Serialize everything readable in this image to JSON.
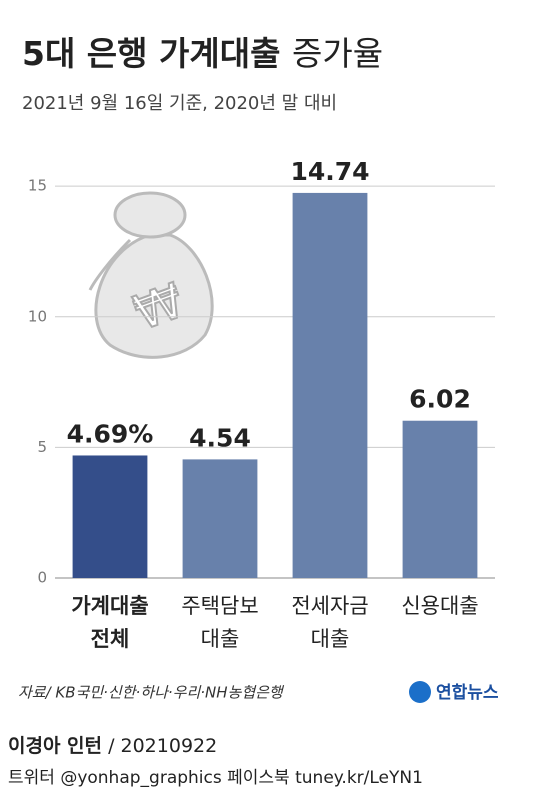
{
  "chart_data": {
    "type": "bar",
    "title": "5대 은행 가계대출",
    "title_suffix": "증가율",
    "subtitle": "2021년 9월 16일 기준, 2020년 말 대비",
    "categories": [
      [
        "가계대출",
        "전체"
      ],
      [
        "주택담보",
        "대출"
      ],
      [
        "전세자금",
        "대출"
      ],
      [
        "신용대출"
      ]
    ],
    "values": [
      4.69,
      4.54,
      14.74,
      6.02
    ],
    "value_labels": [
      "4.69%",
      "4.54",
      "14.74",
      "6.02"
    ],
    "colors": [
      "#344e8a",
      "#6881ab",
      "#6881ab",
      "#6881ab"
    ],
    "ylim": [
      0,
      16
    ],
    "yticks": [
      0,
      5,
      10,
      15
    ],
    "grid": true,
    "source": "자료/ KB국민·신한·하나·우리·NH농협은행",
    "logo": "연합뉴스",
    "author": "이경아 인턴",
    "date": "/ 20210922",
    "social": "트위터 @yonhap_graphics  페이스북 tuney.kr/LeYN1"
  }
}
